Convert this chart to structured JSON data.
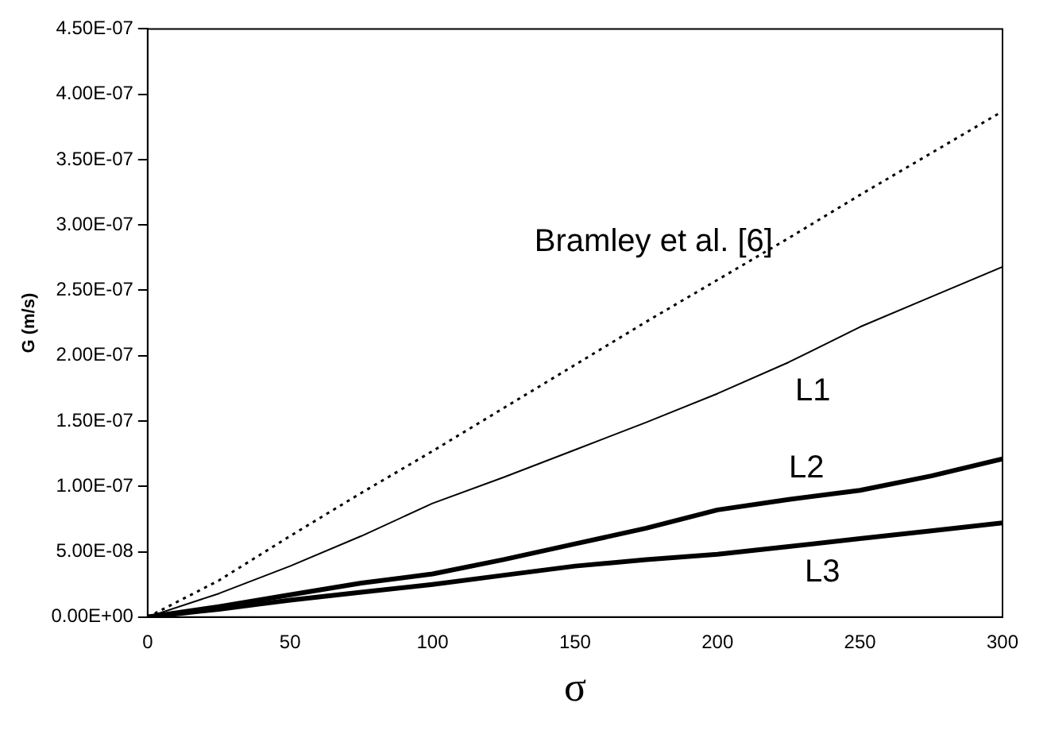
{
  "chart_data": {
    "type": "line",
    "xlabel": "σ",
    "ylabel": "G (m/s)",
    "x": [
      0,
      25,
      50,
      75,
      100,
      125,
      150,
      175,
      200,
      225,
      250,
      275,
      300
    ],
    "series": [
      {
        "name": "Bramley et al. [6]",
        "color": "#000000",
        "line_style": "dotted",
        "values": [
          0,
          2.8e-08,
          6.2e-08,
          9.5e-08,
          1.27e-07,
          1.6e-07,
          1.93e-07,
          2.26e-07,
          2.58e-07,
          2.9e-07,
          3.23e-07,
          3.55e-07,
          3.87e-07
        ]
      },
      {
        "name": "L1",
        "color": "#000000",
        "line_style": "solid",
        "values": [
          0,
          1.8e-08,
          3.9e-08,
          6.2e-08,
          8.7e-08,
          1.07e-07,
          1.28e-07,
          1.49e-07,
          1.71e-07,
          1.95e-07,
          2.22e-07,
          2.45e-07,
          2.68e-07
        ]
      },
      {
        "name": "L2",
        "color": "#000000",
        "line_style": "solid",
        "values": [
          0,
          8e-09,
          1.7e-08,
          2.6e-08,
          3.3e-08,
          4.4e-08,
          5.6e-08,
          6.8e-08,
          8.2e-08,
          9e-08,
          9.7e-08,
          1.08e-07,
          1.21e-07
        ]
      },
      {
        "name": "L3",
        "color": "#000000",
        "line_style": "solid",
        "values": [
          0,
          6e-09,
          1.3e-08,
          1.9e-08,
          2.5e-08,
          3.2e-08,
          3.9e-08,
          4.4e-08,
          4.8e-08,
          5.4e-08,
          6e-08,
          6.6e-08,
          7.2e-08
        ]
      }
    ],
    "xlim": [
      0,
      300
    ],
    "xticks": [
      0,
      50,
      100,
      150,
      200,
      250,
      300
    ],
    "ylim": [
      0,
      4.5e-07
    ],
    "yticks": [
      {
        "value": 0,
        "label": "0.00E+00"
      },
      {
        "value": 5e-08,
        "label": "5.00E-08"
      },
      {
        "value": 1e-07,
        "label": "1.00E-07"
      },
      {
        "value": 1.5e-07,
        "label": "1.50E-07"
      },
      {
        "value": 2e-07,
        "label": "2.00E-07"
      },
      {
        "value": 2.5e-07,
        "label": "2.50E-07"
      },
      {
        "value": 3e-07,
        "label": "3.00E-07"
      },
      {
        "value": 3.5e-07,
        "label": "3.50E-07"
      },
      {
        "value": 4e-07,
        "label": "4.00E-07"
      },
      {
        "value": 4.5e-07,
        "label": "4.50E-07"
      }
    ],
    "grid": false,
    "legend": false,
    "marker": "none"
  }
}
